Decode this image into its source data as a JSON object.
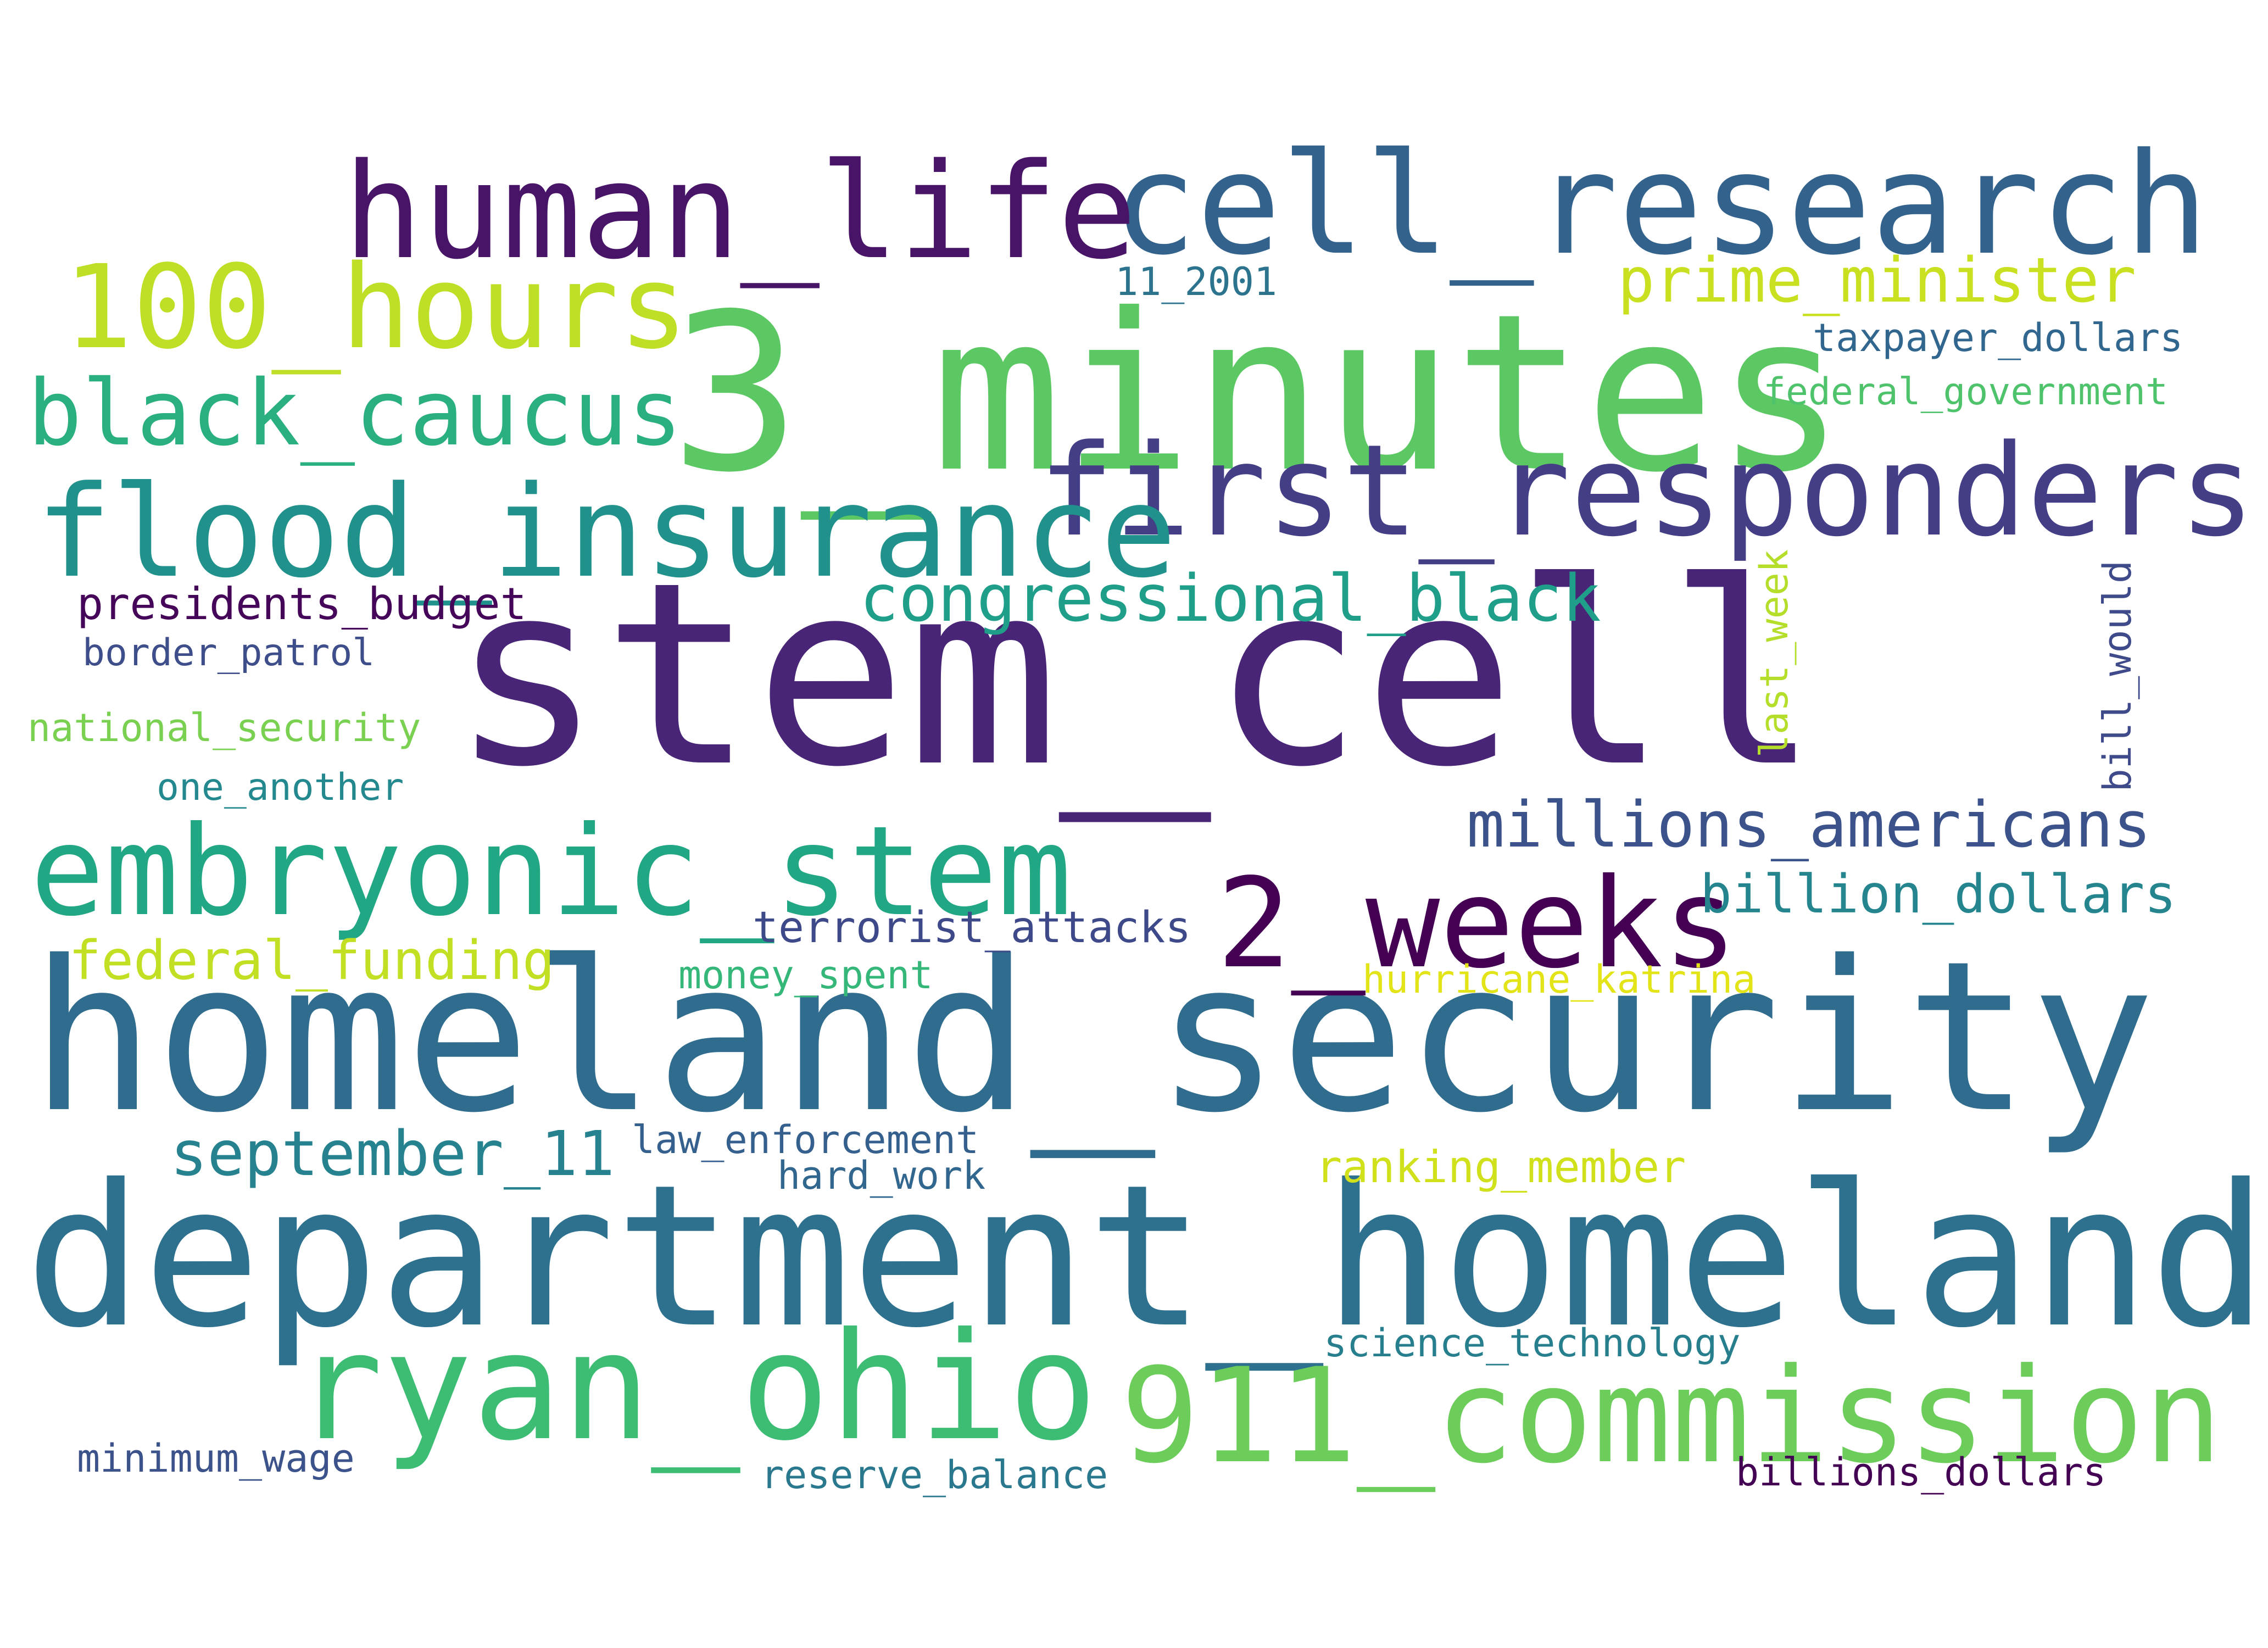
{
  "words": [
    {
      "text": "stem_cell",
      "color": "#482576"
    },
    {
      "text": "homeland_security",
      "color": "#2f6c8e"
    },
    {
      "text": "department_homeland",
      "color": "#2d718e"
    },
    {
      "text": "3_minutes",
      "color": "#5cc863"
    },
    {
      "text": "cell_research",
      "color": "#33638d"
    },
    {
      "text": "human_life",
      "color": "#481467"
    },
    {
      "text": "first_responders",
      "color": "#433e85"
    },
    {
      "text": "flood_insurance",
      "color": "#21918c"
    },
    {
      "text": "embryonic_stem",
      "color": "#22a785"
    },
    {
      "text": "ryan_ohio",
      "color": "#3dbc74"
    },
    {
      "text": "911_commission",
      "color": "#6ccd5a"
    },
    {
      "text": "2_weeks",
      "color": "#440154"
    },
    {
      "text": "100_hours",
      "color": "#bddf26"
    },
    {
      "text": "black_caucus",
      "color": "#2ab07f"
    },
    {
      "text": "congressional_black",
      "color": "#1f9e89"
    },
    {
      "text": "millions_americans",
      "color": "#3b528b"
    },
    {
      "text": "prime_minister",
      "color": "#c8e020"
    },
    {
      "text": "september_11",
      "color": "#26828e"
    },
    {
      "text": "billion_dollars",
      "color": "#25858e"
    },
    {
      "text": "federal_funding",
      "color": "#c2df23"
    },
    {
      "text": "terrorist_attacks",
      "color": "#3e4989"
    },
    {
      "text": "presidents_budget",
      "color": "#450559"
    },
    {
      "text": "ranking_member",
      "color": "#d0e11c"
    },
    {
      "text": "taxpayer_dollars",
      "color": "#31668e"
    },
    {
      "text": "federal_government",
      "color": "#4ec36b"
    },
    {
      "text": "border_patrol",
      "color": "#3d4e8a"
    },
    {
      "text": "national_security",
      "color": "#7ad151"
    },
    {
      "text": "one_another",
      "color": "#23898e"
    },
    {
      "text": "law_enforcement",
      "color": "#355f8d"
    },
    {
      "text": "hard_work",
      "color": "#31668e"
    },
    {
      "text": "money_spent",
      "color": "#35b779"
    },
    {
      "text": "hurricane_katrina",
      "color": "#e2e418"
    },
    {
      "text": "science_technology",
      "color": "#277f8e"
    },
    {
      "text": "minimum_wage",
      "color": "#3b528b"
    },
    {
      "text": "reserve_balance",
      "color": "#2a788e"
    },
    {
      "text": "billions_dollars",
      "color": "#440154"
    },
    {
      "text": "11_2001",
      "color": "#2c738e"
    },
    {
      "text": "last_week",
      "color": "#b5de2b"
    },
    {
      "text": "bill_would",
      "color": "#3e4a89"
    }
  ]
}
